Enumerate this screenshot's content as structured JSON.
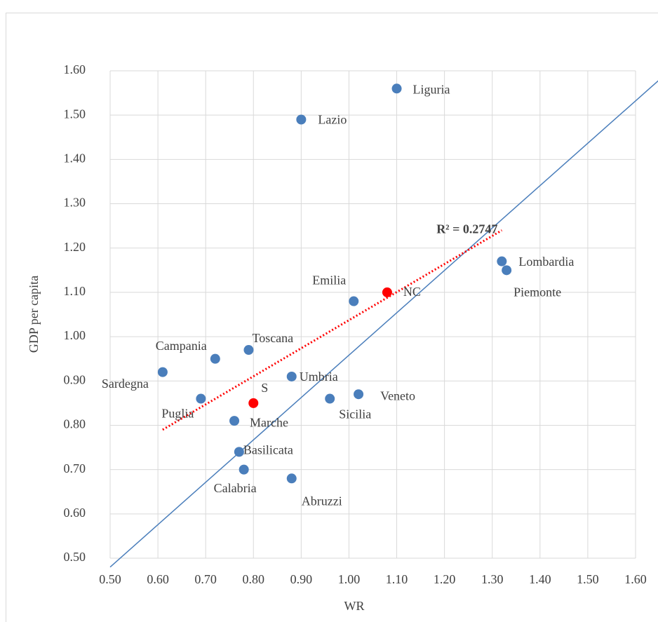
{
  "chart_data": {
    "type": "scatter",
    "x_label": "WR",
    "y_label": "GDP per capita",
    "xlim": [
      0.5,
      1.6
    ],
    "xticks": [
      {
        "value": 0.5,
        "label": "0.50"
      },
      {
        "value": 0.6,
        "label": "0.60"
      },
      {
        "value": 0.7,
        "label": "0.70"
      },
      {
        "value": 0.8,
        "label": "0.80"
      },
      {
        "value": 0.9,
        "label": "0.90"
      },
      {
        "value": 1.0,
        "label": "1.00"
      },
      {
        "value": 1.1,
        "label": "1.10"
      },
      {
        "value": 1.2,
        "label": "1.20"
      },
      {
        "value": 1.3,
        "label": "1.30"
      },
      {
        "value": 1.4,
        "label": "1.40"
      },
      {
        "value": 1.5,
        "label": "1.50"
      },
      {
        "value": 1.6,
        "label": "1.60"
      }
    ],
    "ylim": [
      0.5,
      1.6
    ],
    "yticks": [
      {
        "value": 0.5,
        "label": "0.50"
      },
      {
        "value": 0.6,
        "label": "0.60"
      },
      {
        "value": 0.7,
        "label": "0.70"
      },
      {
        "value": 0.8,
        "label": "0.80"
      },
      {
        "value": 0.9,
        "label": "0.90"
      },
      {
        "value": 1.0,
        "label": "1.00"
      },
      {
        "value": 1.1,
        "label": "1.10"
      },
      {
        "value": 1.2,
        "label": "1.20"
      },
      {
        "value": 1.3,
        "label": "1.30"
      },
      {
        "value": 1.4,
        "label": "1.40"
      },
      {
        "value": 1.5,
        "label": "1.50"
      },
      {
        "value": 1.6,
        "label": "1.60"
      }
    ],
    "grid": true,
    "series": [
      {
        "color": "#4a7ebb",
        "labels": [
          "Liguria",
          "Lazio",
          "Emilia",
          "Lombardia",
          "Piemonte",
          "Toscana",
          "Campania",
          "Sardegna",
          "Umbria",
          "Puglia",
          "Marche",
          "Sicilia",
          "Veneto",
          "Basilicata",
          "Calabria",
          "Abruzzi"
        ],
        "x": [
          1.1,
          0.9,
          1.01,
          1.32,
          1.33,
          0.79,
          0.72,
          0.61,
          0.88,
          0.69,
          0.76,
          0.96,
          1.02,
          0.77,
          0.78,
          0.88
        ],
        "y": [
          1.56,
          1.49,
          1.08,
          1.17,
          1.15,
          0.97,
          0.95,
          0.92,
          0.91,
          0.86,
          0.81,
          0.86,
          0.87,
          0.74,
          0.7,
          0.68
        ]
      },
      {
        "color": "#ff0000",
        "labels": [
          "NC",
          "S"
        ],
        "x": [
          1.08,
          0.8
        ],
        "y": [
          1.1,
          0.85
        ]
      }
    ],
    "trendline": {
      "label": "R² = 0.2747",
      "color": "#ff0000",
      "x": [
        0.61,
        1.32
      ],
      "y": [
        0.79,
        1.24
      ]
    },
    "reference_line": {
      "color": "#4a7ebb",
      "x": [
        0.5,
        1.65
      ],
      "y": [
        0.48,
        1.58
      ]
    }
  }
}
